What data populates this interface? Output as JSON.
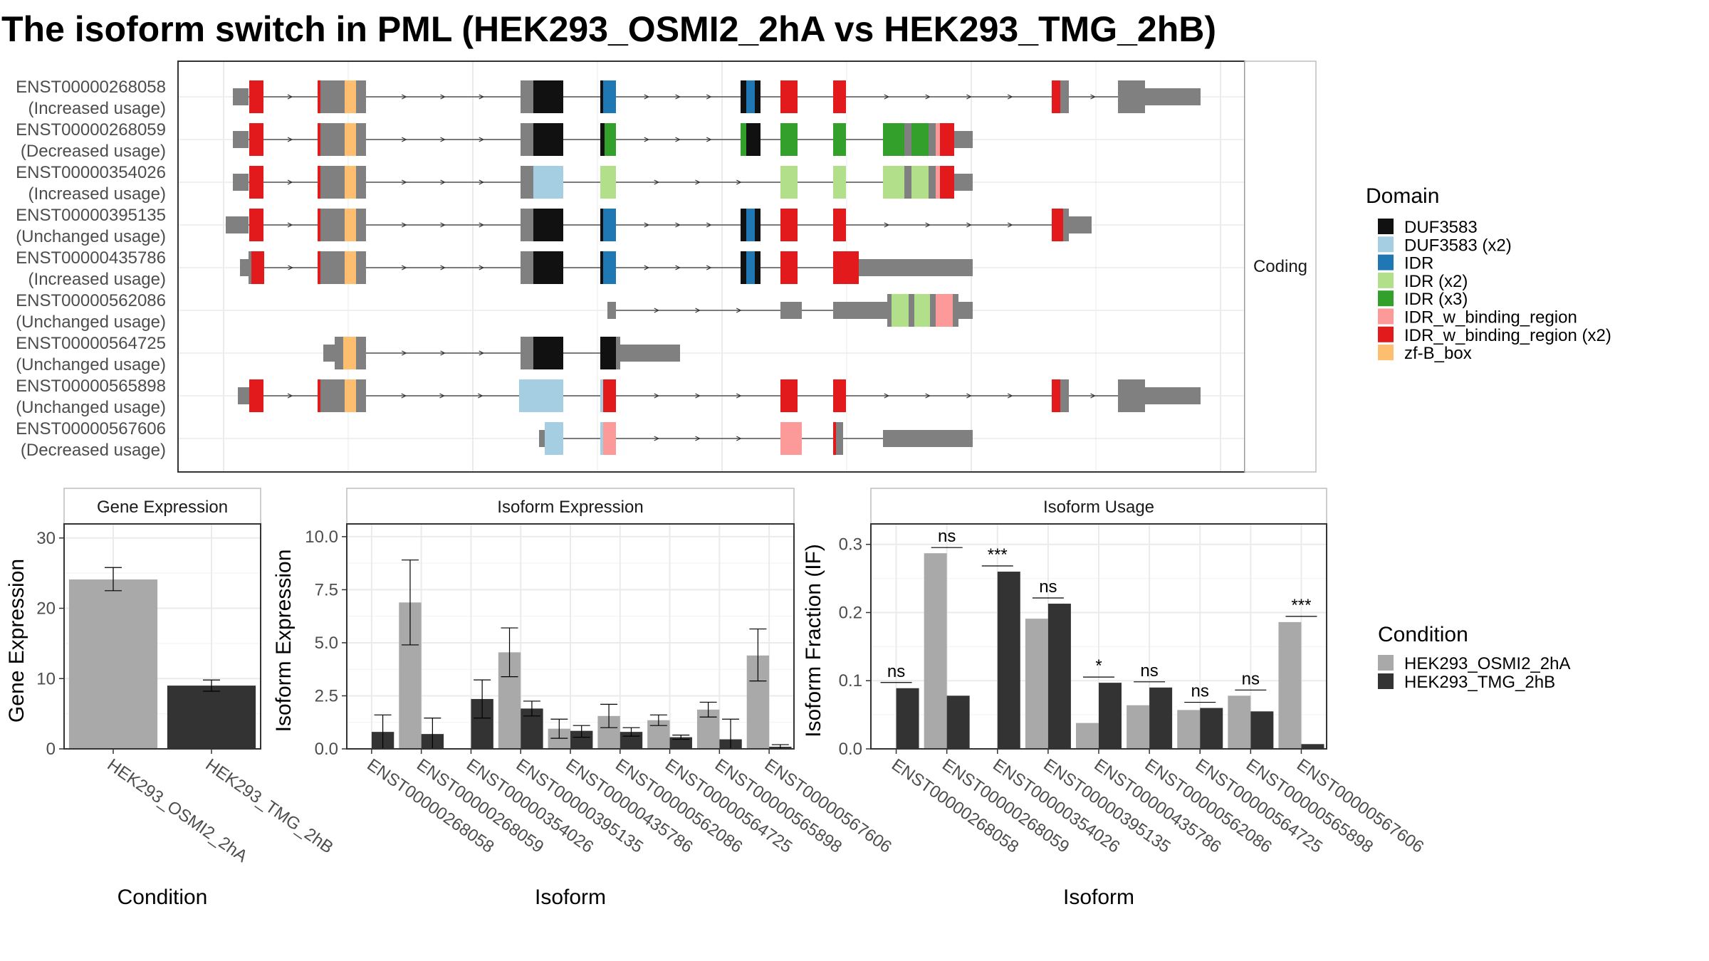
{
  "title": "The isoform switch in PML (HEK293_OSMI2_2hA vs HEK293_TMG_2hB)",
  "colors": {
    "cond_a": "#a9a9a9",
    "cond_b": "#333333",
    "intron_box": "#808080",
    "grid": "#ebebeb",
    "panel_border": "#333333",
    "strip_border": "#bdbdbd"
  },
  "chart_data": [
    {
      "type": "transcript-structure",
      "facet_label": "Coding",
      "isoforms": [
        {
          "id": "ENST00000268058",
          "usage": "(Increased usage)"
        },
        {
          "id": "ENST00000268059",
          "usage": "(Decreased usage)"
        },
        {
          "id": "ENST00000354026",
          "usage": "(Increased usage)"
        },
        {
          "id": "ENST00000395135",
          "usage": "(Unchanged usage)"
        },
        {
          "id": "ENST00000435786",
          "usage": "(Increased usage)"
        },
        {
          "id": "ENST00000562086",
          "usage": "(Unchanged usage)"
        },
        {
          "id": "ENST00000564725",
          "usage": "(Unchanged usage)"
        },
        {
          "id": "ENST00000565898",
          "usage": "(Unchanged usage)"
        },
        {
          "id": "ENST00000567606",
          "usage": "(Decreased usage)"
        }
      ],
      "legend": {
        "title": "Domain",
        "placement": "right",
        "entries": [
          {
            "label": "DUF3583",
            "color": "#111111"
          },
          {
            "label": "DUF3583 (x2)",
            "color": "#a6cee3"
          },
          {
            "label": "IDR",
            "color": "#1f78b4"
          },
          {
            "label": "IDR (x2)",
            "color": "#b2df8a"
          },
          {
            "label": "IDR (x3)",
            "color": "#33a02c"
          },
          {
            "label": "IDR_w_binding_region",
            "color": "#fb9a99"
          },
          {
            "label": "IDR_w_binding_region (x2)",
            "color": "#e31a1c"
          },
          {
            "label": "zf-B_box",
            "color": "#fdbf6f"
          }
        ]
      }
    },
    {
      "type": "bar",
      "title": "Gene Expression",
      "xlabel": "Condition",
      "ylabel": "Gene Expression",
      "ylim": [
        0,
        32
      ],
      "yticks": [
        "0",
        "10",
        "20",
        "30"
      ],
      "categories": [
        "HEK293_OSMI2_2hA",
        "HEK293_TMG_2hB"
      ],
      "values": [
        24.1,
        9.0
      ],
      "error_low": [
        22.5,
        8.2
      ],
      "error_high": [
        25.8,
        9.8
      ]
    },
    {
      "type": "bar",
      "title": "Isoform Expression",
      "xlabel": "Isoform",
      "ylabel": "Isoform Expression",
      "ylim": [
        0,
        10.6
      ],
      "yticks": [
        "0.0",
        "2.5",
        "5.0",
        "7.5",
        "10.0"
      ],
      "categories": [
        "ENST00000268058",
        "ENST00000268059",
        "ENST00000354026",
        "ENST00000395135",
        "ENST00000435786",
        "ENST00000562086",
        "ENST00000564725",
        "ENST00000565898",
        "ENST00000567606"
      ],
      "series": [
        {
          "name": "HEK293_OSMI2_2hA",
          "values": [
            0.0,
            6.9,
            0.0,
            4.55,
            0.95,
            1.55,
            1.35,
            1.85,
            4.4
          ],
          "error_low": [
            0.0,
            4.9,
            0.0,
            3.4,
            0.5,
            1.0,
            1.1,
            1.5,
            3.2
          ],
          "error_high": [
            0.0,
            8.9,
            0.0,
            5.7,
            1.4,
            2.1,
            1.6,
            2.2,
            5.65
          ]
        },
        {
          "name": "HEK293_TMG_2hB",
          "values": [
            0.8,
            0.7,
            2.35,
            1.9,
            0.85,
            0.8,
            0.55,
            0.45,
            0.1
          ],
          "error_low": [
            0.0,
            0.0,
            1.45,
            1.55,
            0.55,
            0.6,
            0.45,
            0.0,
            0.0
          ],
          "error_high": [
            1.6,
            1.45,
            3.25,
            2.25,
            1.1,
            1.0,
            0.65,
            1.4,
            0.2
          ]
        }
      ]
    },
    {
      "type": "bar",
      "title": "Isoform Usage",
      "xlabel": "Isoform",
      "ylabel": "Isoform Fraction (IF)",
      "ylim": [
        0,
        0.33
      ],
      "yticks": [
        "0.0",
        "0.1",
        "0.2",
        "0.3"
      ],
      "categories": [
        "ENST00000268058",
        "ENST00000268059",
        "ENST00000354026",
        "ENST00000395135",
        "ENST00000435786",
        "ENST00000562086",
        "ENST00000564725",
        "ENST00000565898",
        "ENST00000567606"
      ],
      "series": [
        {
          "name": "HEK293_OSMI2_2hA",
          "values": [
            0.0,
            0.287,
            0.0,
            0.191,
            0.038,
            0.064,
            0.057,
            0.078,
            0.186
          ]
        },
        {
          "name": "HEK293_TMG_2hB",
          "values": [
            0.089,
            0.078,
            0.26,
            0.213,
            0.097,
            0.09,
            0.06,
            0.055,
            0.007
          ]
        }
      ],
      "significance": [
        "ns",
        "ns",
        "***",
        "ns",
        "*",
        "ns",
        "ns",
        "ns",
        "***"
      ],
      "legend": {
        "title": "Condition",
        "placement": "right",
        "entries": [
          "HEK293_OSMI2_2hA",
          "HEK293_TMG_2hB"
        ]
      }
    }
  ]
}
